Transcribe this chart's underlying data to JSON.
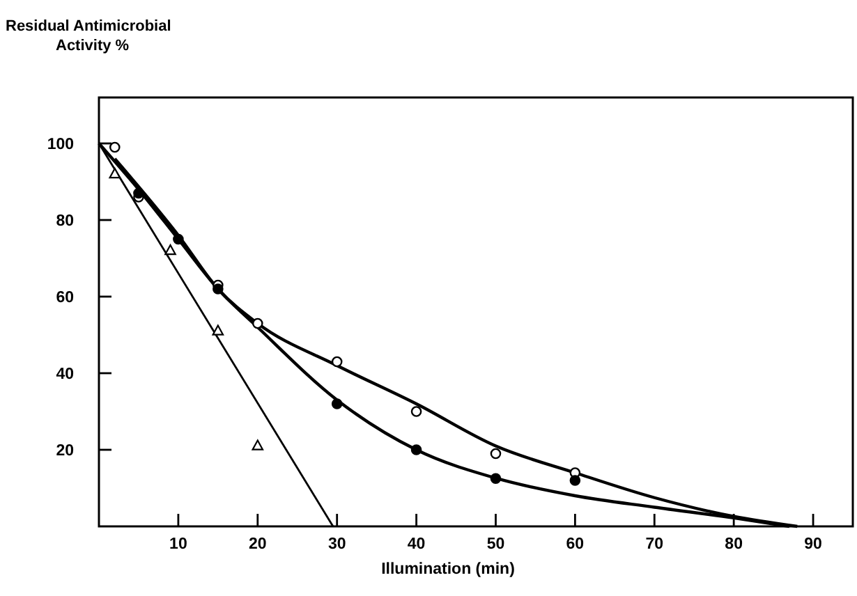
{
  "chart_data": {
    "type": "scatter",
    "xlabel": "Illumination (min)",
    "ylabel": "Residual Antimicrobial\nActivity %",
    "xlim": [
      0,
      95
    ],
    "ylim": [
      0,
      112
    ],
    "xticks": [
      10,
      20,
      30,
      40,
      50,
      60,
      70,
      80,
      90
    ],
    "yticks": [
      20,
      40,
      60,
      80,
      100
    ],
    "grid": false,
    "series": [
      {
        "marker": "circle",
        "color": "#ffffff",
        "x": [
          2,
          5,
          15,
          20,
          30,
          40,
          50,
          60
        ],
        "values": [
          99,
          86,
          63,
          53,
          43,
          30,
          19,
          14
        ]
      },
      {
        "marker": "circle",
        "color": "#000000",
        "x": [
          5,
          10,
          15,
          30,
          40,
          50,
          60
        ],
        "values": [
          87,
          75,
          62,
          32,
          20,
          12.5,
          12
        ]
      },
      {
        "marker": "triangle",
        "color": "#ffffff",
        "x": [
          2,
          9,
          15,
          20
        ],
        "values": [
          92,
          72,
          51,
          21
        ]
      },
      {
        "type": "line",
        "color": "#000000",
        "x": [
          2,
          10,
          15,
          20,
          30,
          40,
          50,
          60,
          70,
          80,
          88
        ],
        "values": [
          96,
          76,
          62,
          53,
          42,
          32,
          21,
          14,
          7.5,
          2.6,
          0
        ]
      },
      {
        "type": "line",
        "color": "#000000",
        "x": [
          0,
          5,
          10,
          15,
          20,
          30,
          40,
          50,
          60,
          70,
          80,
          87
        ],
        "values": [
          100,
          88,
          75,
          62,
          52,
          33,
          20,
          12.6,
          8,
          5,
          2.2,
          0
        ]
      },
      {
        "type": "line",
        "color": "#000000",
        "x": [
          0,
          29.5
        ],
        "values": [
          100,
          0
        ]
      }
    ]
  }
}
